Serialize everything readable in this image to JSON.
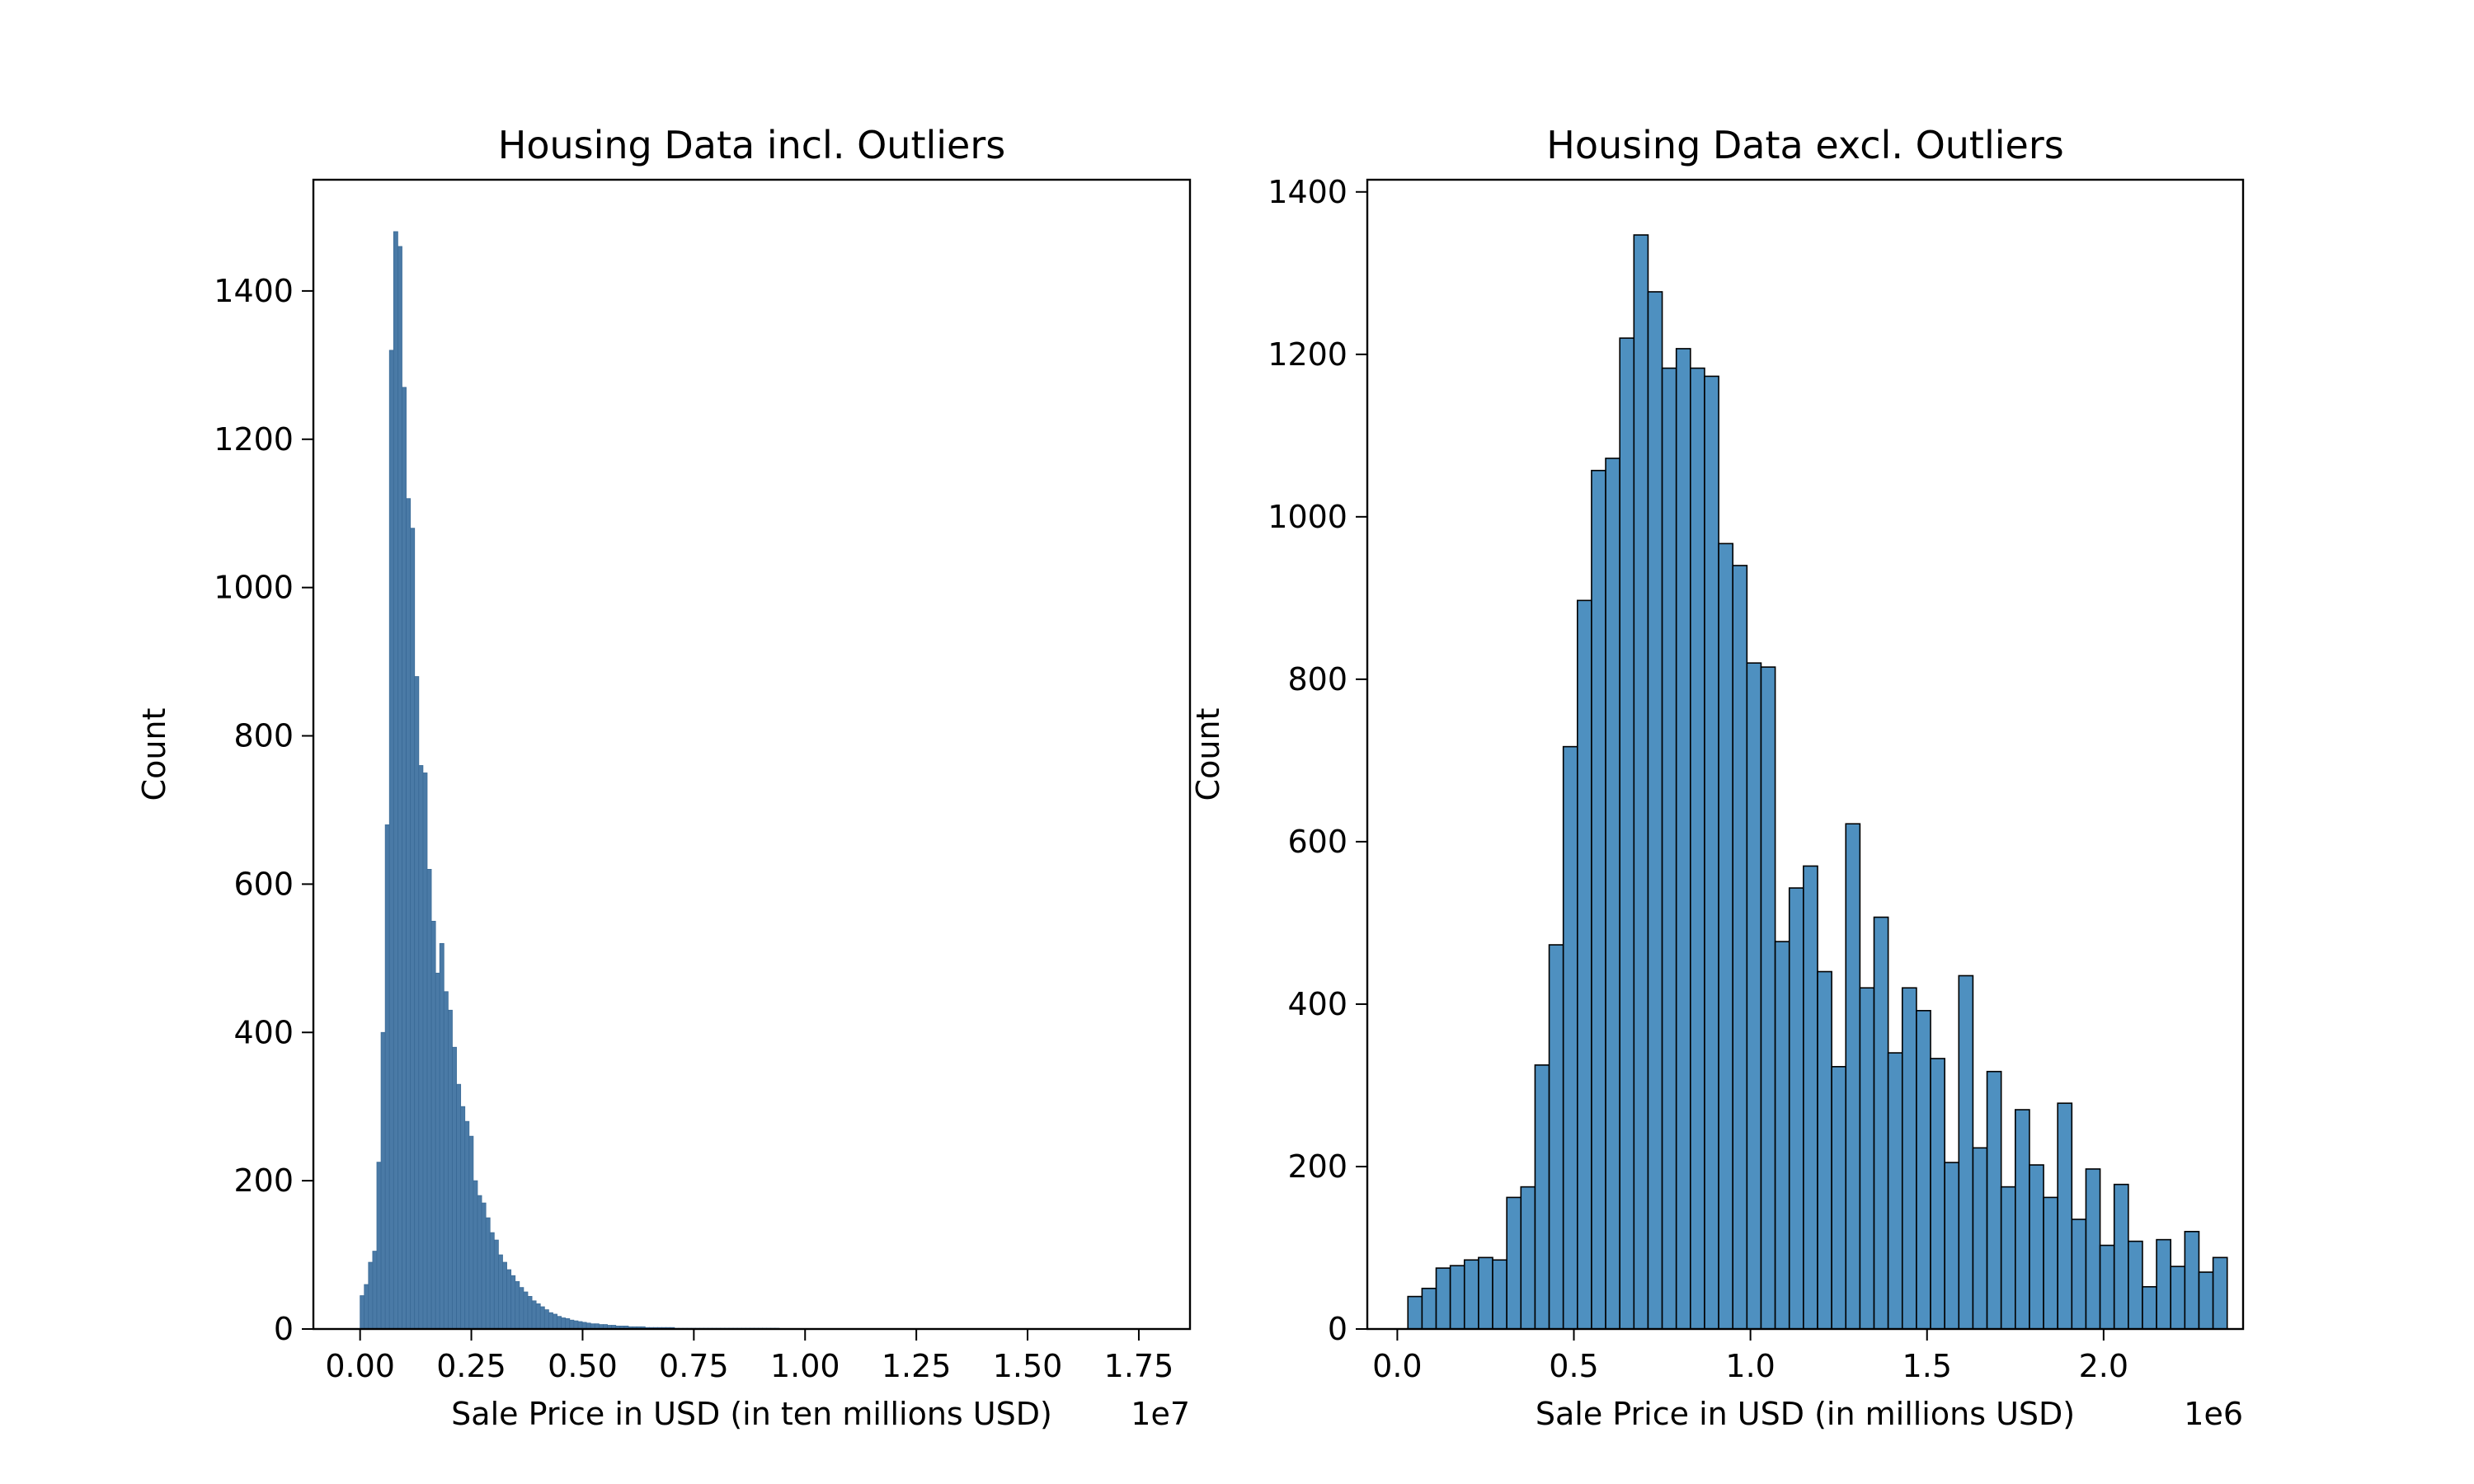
{
  "figure": {
    "background": "#ffffff"
  },
  "chart_data": [
    {
      "type": "bar",
      "title": "Housing Data incl. Outliers",
      "xlabel": "Sale Price in USD (in ten millions USD)",
      "ylabel": "Count",
      "x_offset_text": "1e7",
      "xlim": [
        -0.105,
        1.865
      ],
      "ylim": [
        0,
        1550
      ],
      "xticks": [
        0,
        0.25,
        0.5,
        0.75,
        1.0,
        1.25,
        1.5,
        1.75
      ],
      "xtick_labels": [
        "0.00",
        "0.25",
        "0.50",
        "0.75",
        "1.00",
        "1.25",
        "1.50",
        "1.75"
      ],
      "yticks": [
        0,
        200,
        400,
        600,
        800,
        1000,
        1200,
        1400
      ],
      "ytick_labels": [
        "0",
        "200",
        "400",
        "600",
        "800",
        "1000",
        "1200",
        "1400"
      ],
      "bin_start": 0,
      "bin_width": 0.00942,
      "counts": [
        45,
        60,
        90,
        105,
        225,
        400,
        680,
        1320,
        1480,
        1460,
        1270,
        1120,
        1080,
        880,
        760,
        750,
        620,
        550,
        480,
        520,
        455,
        430,
        380,
        330,
        300,
        280,
        260,
        200,
        180,
        170,
        150,
        130,
        120,
        100,
        90,
        80,
        72,
        64,
        56,
        50,
        44,
        38,
        34,
        30,
        26,
        22,
        20,
        17,
        15,
        14,
        12,
        11,
        10,
        9,
        8,
        7,
        7,
        6,
        6,
        5,
        5,
        4,
        4,
        4,
        3,
        3,
        3,
        3,
        2,
        2,
        2,
        2,
        2,
        2,
        2,
        1,
        1,
        1,
        1,
        1,
        1,
        1,
        1,
        1,
        1,
        1,
        1,
        1,
        1,
        1,
        1,
        1,
        1,
        1,
        1,
        1,
        1,
        1,
        1,
        1
      ],
      "bar_color": "#4a7aa6",
      "edge_color": "#3a6a96"
    },
    {
      "type": "bar",
      "title": "Housing Data excl. Outliers",
      "xlabel": "Sale Price in USD (in millions USD)",
      "ylabel": "Count",
      "x_offset_text": "1e6",
      "xlim": [
        -0.085,
        2.395
      ],
      "ylim": [
        0,
        1415
      ],
      "xticks": [
        0,
        0.5,
        1.0,
        1.5,
        2.0
      ],
      "xtick_labels": [
        "0.0",
        "0.5",
        "1.0",
        "1.5",
        "2.0"
      ],
      "yticks": [
        0,
        200,
        400,
        600,
        800,
        1000,
        1200,
        1400
      ],
      "ytick_labels": [
        "0",
        "200",
        "400",
        "600",
        "800",
        "1000",
        "1200",
        "1400"
      ],
      "bin_start": 0.03,
      "bin_width": 0.04,
      "counts": [
        40,
        50,
        75,
        78,
        85,
        88,
        85,
        162,
        175,
        325,
        473,
        717,
        897,
        1057,
        1072,
        1220,
        1347,
        1277,
        1183,
        1207,
        1183,
        1173,
        967,
        940,
        820,
        815,
        477,
        543,
        570,
        440,
        323,
        622,
        420,
        507,
        340,
        420,
        392,
        333,
        205,
        435,
        223,
        317,
        175,
        270,
        202,
        162,
        278,
        135,
        197,
        103,
        178,
        108,
        52,
        110,
        77,
        120,
        70,
        88
      ],
      "bar_color": "#4e90c0",
      "edge_color": "#000000"
    }
  ]
}
